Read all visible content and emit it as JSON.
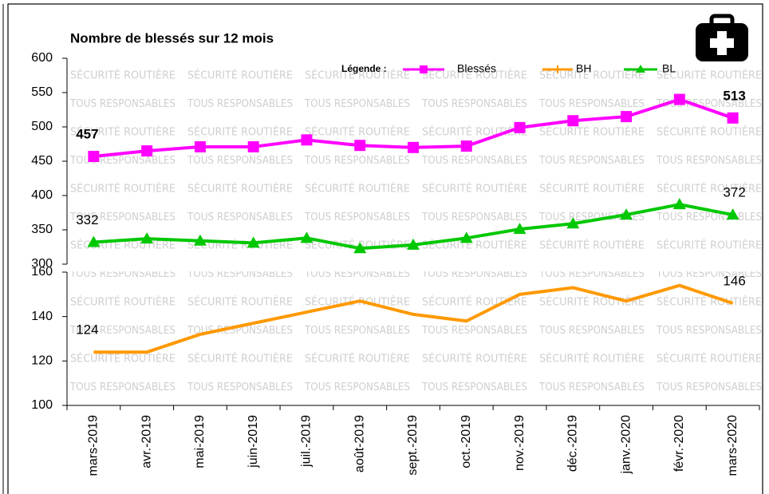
{
  "chart_data": [
    {
      "type": "line",
      "title": "Nombre de blessés sur 12 mois",
      "legend_title": "Légende :",
      "watermark": [
        "SÉCURITÉ ROUTIÈRE",
        "TOUS RESPONSABLES"
      ],
      "ylim": [
        300,
        600
      ],
      "yticks": [
        300,
        350,
        400,
        450,
        500,
        550,
        600
      ],
      "series": [
        {
          "name": "Blessés",
          "color": "#ff00ff",
          "marker": "square",
          "labels_bold": true,
          "values": [
            457,
            465,
            471,
            471,
            481,
            473,
            470,
            472,
            499,
            509,
            515,
            540,
            513
          ]
        },
        {
          "name": "BL",
          "color": "#00c800",
          "marker": "triangle",
          "values": [
            332,
            337,
            334,
            331,
            338,
            323,
            328,
            338,
            351,
            359,
            372,
            387,
            372
          ]
        }
      ]
    },
    {
      "type": "line",
      "categories": [
        "mars-2019",
        "avr.-2019",
        "mai-2019",
        "juin-2019",
        "juil.-2019",
        "août-2019",
        "sept.-2019",
        "oct.-2019",
        "nov.-2019",
        "déc.-2019",
        "janv.-2020",
        "févr.-2020",
        "mars-2020"
      ],
      "ylim": [
        100,
        160
      ],
      "yticks": [
        100,
        120,
        140,
        160
      ],
      "series": [
        {
          "name": "BH",
          "color": "#ff9900",
          "values": [
            124,
            124,
            132,
            137,
            142,
            147,
            141,
            138,
            150,
            153,
            147,
            154,
            146
          ]
        }
      ]
    }
  ]
}
